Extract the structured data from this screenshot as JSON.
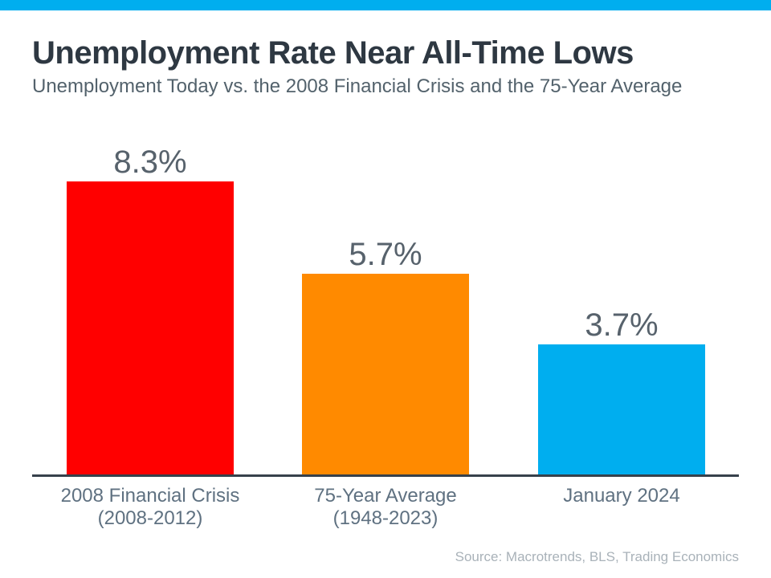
{
  "header": {
    "title": "Unemployment Rate Near All-Time Lows",
    "subtitle": "Unemployment Today vs. the 2008 Financial Crisis and the 75-Year Average"
  },
  "footer": {
    "source": "Source: Macrotrends, BLS, Trading Economics"
  },
  "colors": {
    "accent_strip": "#00AEEF",
    "bar_red": "#FF0000",
    "bar_orange": "#FF8A00",
    "bar_blue": "#00AEEF",
    "axis": "#37414B",
    "title_text": "#2E3842",
    "subtitle_text": "#53626C",
    "value_label_text": "#57626C",
    "category_label_text": "#5F7181",
    "source_text": "#A9B2B9"
  },
  "chart_data": {
    "type": "bar",
    "title": "Unemployment Rate Near All-Time Lows",
    "subtitle": "Unemployment Today vs. the 2008 Financial Crisis and the 75-Year Average",
    "categories": [
      [
        "2008 Financial Crisis",
        "(2008-2012)"
      ],
      [
        "75-Year Average",
        "(1948-2023)"
      ],
      [
        "January 2024"
      ]
    ],
    "values": [
      8.3,
      5.7,
      3.7
    ],
    "value_labels": [
      "8.3%",
      "5.7%",
      "3.7%"
    ],
    "bar_colors": [
      "#FF0000",
      "#FF8A00",
      "#00AEEF"
    ],
    "xlabel": "",
    "ylabel": "",
    "ylim": [
      0,
      9
    ],
    "grid": false,
    "legend": false,
    "source": "Source: Macrotrends, BLS, Trading Economics"
  }
}
